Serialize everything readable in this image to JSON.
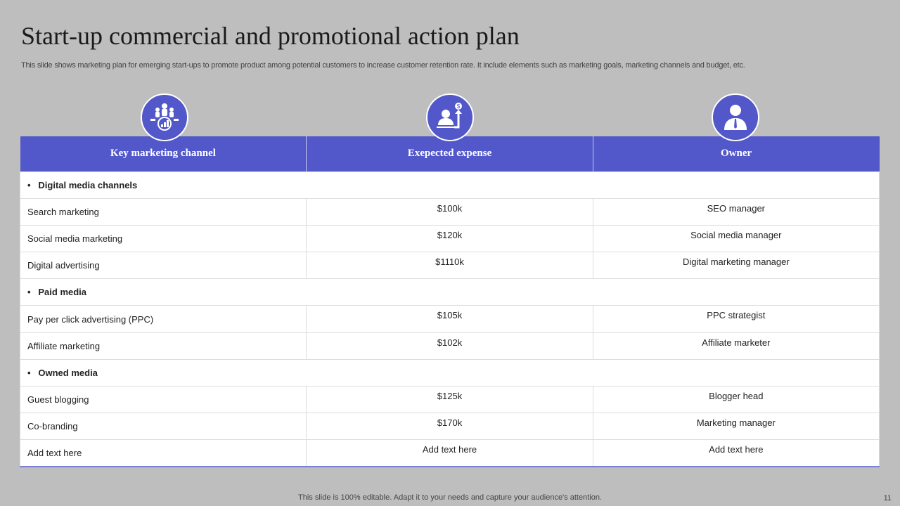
{
  "title": "Start-up commercial and promotional action plan",
  "subtitle": "This slide shows marketing plan for emerging start-ups to promote product among potential customers to increase customer retention rate. It include elements such as marketing goals, marketing channels and budget, etc.",
  "colors": {
    "header": "#5257c9",
    "background": "#bebebe"
  },
  "icons": [
    "team-growth-icon",
    "person-money-growth-icon",
    "businessman-icon"
  ],
  "headers": [
    "Key marketing  channel",
    "Exepected expense",
    "Owner"
  ],
  "sections": [
    {
      "label": "Digital media channels",
      "rows": [
        [
          "Search marketing",
          "$100k",
          "SEO manager"
        ],
        [
          "Social media marketing",
          "$120k",
          "Social media manager"
        ],
        [
          "Digital advertising",
          "$1110k",
          "Digital marketing manager"
        ]
      ]
    },
    {
      "label": "Paid media",
      "rows": [
        [
          "Pay per click advertising  (PPC)",
          "$105k",
          "PPC strategist"
        ],
        [
          "Affiliate marketing",
          "$102k",
          "Affiliate marketer"
        ]
      ]
    },
    {
      "label": "Owned media",
      "rows": [
        [
          "Guest blogging",
          "$125k",
          "Blogger head"
        ],
        [
          "Co-branding",
          "$170k",
          "Marketing manager"
        ],
        [
          "Add text here",
          "Add text here",
          "Add text here"
        ]
      ]
    }
  ],
  "footer": "This slide is 100% editable. Adapt it to your needs and capture your audience's attention.",
  "page_number": "11"
}
